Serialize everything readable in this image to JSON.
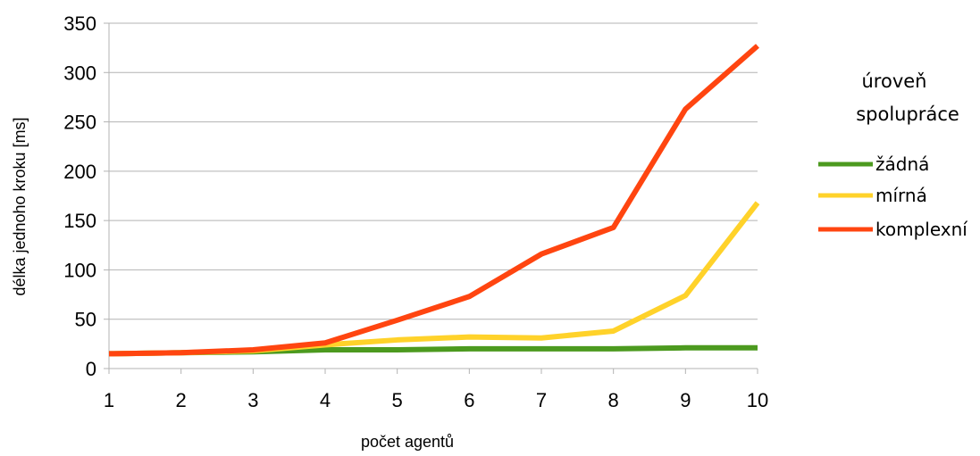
{
  "chart_data": {
    "type": "line",
    "title": "",
    "xlabel": "počet agentů",
    "ylabel": "délka jednoho kroku [ms]",
    "x": [
      1,
      2,
      3,
      4,
      5,
      6,
      7,
      8,
      9,
      10
    ],
    "xlim": [
      1,
      10
    ],
    "ylim": [
      0,
      350
    ],
    "yticks": [
      0,
      50,
      100,
      150,
      200,
      250,
      300,
      350
    ],
    "grid": true,
    "legend_position": "right",
    "legend_title_lines": [
      "úroveň",
      "spolupráce"
    ],
    "series": [
      {
        "name": "žádná",
        "color": "#4c9a1f",
        "values": [
          15,
          16,
          17,
          19,
          19,
          20,
          20,
          20,
          21,
          21
        ]
      },
      {
        "name": "mírná",
        "color": "#ffd22a",
        "values": [
          15,
          16,
          18,
          24,
          29,
          32,
          31,
          38,
          74,
          168
        ]
      },
      {
        "name": "komplexní",
        "color": "#ff4510",
        "values": [
          15,
          16,
          19,
          26,
          49,
          73,
          116,
          143,
          263,
          327
        ]
      }
    ]
  }
}
